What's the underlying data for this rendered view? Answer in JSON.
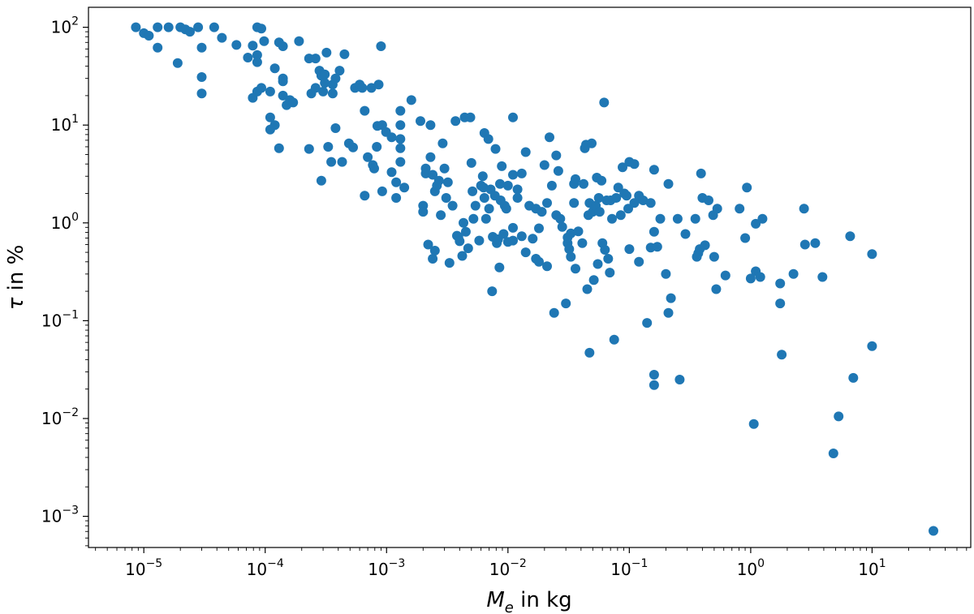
{
  "chart_data": {
    "type": "scatter",
    "xscale": "log",
    "yscale": "log",
    "xlim": [
      3.5e-06,
      65
    ],
    "ylim": [
      0.00048,
      160
    ],
    "grid": false,
    "legend": "none",
    "marker_color": "#1f77b4",
    "xlabel": {
      "symbol": "M",
      "subscript": "e",
      "rest": " in kg"
    },
    "ylabel": {
      "symbol": "τ",
      "rest": " in %"
    },
    "x_ticks": [
      {
        "value": 1e-05,
        "base": "10",
        "exp": "−5"
      },
      {
        "value": 0.0001,
        "base": "10",
        "exp": "−4"
      },
      {
        "value": 0.001,
        "base": "10",
        "exp": "−3"
      },
      {
        "value": 0.01,
        "base": "10",
        "exp": "−2"
      },
      {
        "value": 0.1,
        "base": "10",
        "exp": "−1"
      },
      {
        "value": 1,
        "base": "10",
        "exp": "0"
      },
      {
        "value": 10,
        "base": "10",
        "exp": "1"
      }
    ],
    "y_ticks": [
      {
        "value": 0.001,
        "base": "10",
        "exp": "−3"
      },
      {
        "value": 0.01,
        "base": "10",
        "exp": "−2"
      },
      {
        "value": 0.1,
        "base": "10",
        "exp": "−1"
      },
      {
        "value": 1,
        "base": "10",
        "exp": "0"
      },
      {
        "value": 10,
        "base": "10",
        "exp": "1"
      },
      {
        "value": 100,
        "base": "10",
        "exp": "2"
      }
    ],
    "points": [
      [
        8.6e-06,
        100
      ],
      [
        1e-05,
        87
      ],
      [
        1.1e-05,
        82
      ],
      [
        1.3e-05,
        100
      ],
      [
        1.6e-05,
        100
      ],
      [
        2e-05,
        100
      ],
      [
        2.2e-05,
        95
      ],
      [
        2.4e-05,
        90
      ],
      [
        2.8e-05,
        100
      ],
      [
        3.8e-05,
        100
      ],
      [
        4.4e-05,
        78
      ],
      [
        1.3e-05,
        62
      ],
      [
        1.9e-05,
        43
      ],
      [
        3e-05,
        62
      ],
      [
        3e-05,
        31
      ],
      [
        3e-05,
        21
      ],
      [
        5.8e-05,
        66
      ],
      [
        7.2e-05,
        49
      ],
      [
        7.9e-05,
        65
      ],
      [
        8.6e-05,
        100
      ],
      [
        9.3e-05,
        97
      ],
      [
        8.6e-05,
        52
      ],
      [
        8.6e-05,
        44
      ],
      [
        9.8e-05,
        72
      ],
      [
        7.9e-05,
        19
      ],
      [
        8.6e-05,
        22
      ],
      [
        0.00011,
        22
      ],
      [
        9.3e-05,
        24
      ],
      [
        0.00011,
        12
      ],
      [
        0.00011,
        9
      ],
      [
        0.00012,
        10
      ],
      [
        0.00013,
        5.8
      ],
      [
        0.00012,
        38
      ],
      [
        0.00013,
        70
      ],
      [
        0.00014,
        64
      ],
      [
        0.00014,
        30
      ],
      [
        0.00014,
        20
      ],
      [
        0.00014,
        28
      ],
      [
        0.00015,
        16
      ],
      [
        0.00016,
        18
      ],
      [
        0.00017,
        17
      ],
      [
        0.00019,
        72
      ],
      [
        0.00023,
        48
      ],
      [
        0.00023,
        5.7
      ],
      [
        0.00024,
        21
      ],
      [
        0.00026,
        24
      ],
      [
        0.00026,
        48
      ],
      [
        0.00028,
        36
      ],
      [
        0.00029,
        2.7
      ],
      [
        0.00029,
        32
      ],
      [
        0.0003,
        22
      ],
      [
        0.00031,
        33
      ],
      [
        0.00031,
        27
      ],
      [
        0.00032,
        55
      ],
      [
        0.00033,
        6.0
      ],
      [
        0.00035,
        4.2
      ],
      [
        0.00036,
        26
      ],
      [
        0.00036,
        21
      ],
      [
        0.00038,
        9.3
      ],
      [
        0.00038,
        30
      ],
      [
        0.00041,
        36
      ],
      [
        0.00043,
        4.2
      ],
      [
        0.00045,
        53
      ],
      [
        0.00049,
        6.5
      ],
      [
        0.00053,
        5.9
      ],
      [
        0.00055,
        24
      ],
      [
        0.0006,
        26
      ],
      [
        0.00063,
        24
      ],
      [
        0.00066,
        14
      ],
      [
        0.00066,
        1.9
      ],
      [
        0.0007,
        4.7
      ],
      [
        0.00075,
        24
      ],
      [
        0.00077,
        3.9
      ],
      [
        0.00079,
        3.6
      ],
      [
        0.00083,
        6.0
      ],
      [
        0.00084,
        9.8
      ],
      [
        0.00086,
        26
      ],
      [
        0.0009,
        64
      ],
      [
        0.00092,
        10
      ],
      [
        0.00092,
        2.1
      ],
      [
        0.00099,
        8.5
      ],
      [
        0.0011,
        3.3
      ],
      [
        0.0011,
        7.5
      ],
      [
        0.0012,
        2.6
      ],
      [
        0.0012,
        1.8
      ],
      [
        0.0013,
        14
      ],
      [
        0.0013,
        10
      ],
      [
        0.0013,
        4.2
      ],
      [
        0.0013,
        5.8
      ],
      [
        0.0013,
        7.2
      ],
      [
        0.0014,
        2.3
      ],
      [
        0.0016,
        18
      ],
      [
        0.0019,
        11
      ],
      [
        0.002,
        1.5
      ],
      [
        0.002,
        1.3
      ],
      [
        0.0021,
        3.6
      ],
      [
        0.0021,
        3.2
      ],
      [
        0.0022,
        0.6
      ],
      [
        0.0023,
        4.7
      ],
      [
        0.0023,
        10
      ],
      [
        0.0024,
        0.43
      ],
      [
        0.0024,
        3.1
      ],
      [
        0.0025,
        2.1
      ],
      [
        0.0025,
        0.52
      ],
      [
        0.0026,
        2.4
      ],
      [
        0.0027,
        2.7
      ],
      [
        0.0028,
        1.2
      ],
      [
        0.0029,
        6.5
      ],
      [
        0.003,
        3.6
      ],
      [
        0.0031,
        1.8
      ],
      [
        0.0032,
        2.6
      ],
      [
        0.0033,
        0.39
      ],
      [
        0.0035,
        1.5
      ],
      [
        0.0037,
        11
      ],
      [
        0.0038,
        0.74
      ],
      [
        0.0039,
        0.72
      ],
      [
        0.004,
        0.65
      ],
      [
        0.0042,
        0.46
      ],
      [
        0.0043,
        1.0
      ],
      [
        0.0044,
        12
      ],
      [
        0.0045,
        0.81
      ],
      [
        0.0047,
        0.55
      ],
      [
        0.0049,
        12
      ],
      [
        0.005,
        4.1
      ],
      [
        0.0051,
        2.1
      ],
      [
        0.0052,
        1.1
      ],
      [
        0.0054,
        1.5
      ],
      [
        0.0058,
        0.66
      ],
      [
        0.006,
        2.4
      ],
      [
        0.0062,
        3.0
      ],
      [
        0.0063,
        2.3
      ],
      [
        0.0064,
        1.8
      ],
      [
        0.0064,
        8.3
      ],
      [
        0.0066,
        1.1
      ],
      [
        0.0069,
        7.2
      ],
      [
        0.007,
        1.4
      ],
      [
        0.0072,
        2.2
      ],
      [
        0.0074,
        0.2
      ],
      [
        0.0075,
        0.72
      ],
      [
        0.0078,
        1.9
      ],
      [
        0.0079,
        5.7
      ],
      [
        0.0081,
        0.62
      ],
      [
        0.0083,
        0.68
      ],
      [
        0.0085,
        0.35
      ],
      [
        0.0086,
        2.5
      ],
      [
        0.0087,
        1.7
      ],
      [
        0.0089,
        3.8
      ],
      [
        0.0092,
        0.77
      ],
      [
        0.0094,
        1.5
      ],
      [
        0.0097,
        1.4
      ],
      [
        0.01,
        2.4
      ],
      [
        0.01,
        0.64
      ],
      [
        0.011,
        12
      ],
      [
        0.011,
        3.1
      ],
      [
        0.011,
        0.66
      ],
      [
        0.011,
        0.89
      ],
      [
        0.012,
        2.2
      ],
      [
        0.012,
        1.8
      ],
      [
        0.013,
        0.73
      ],
      [
        0.013,
        3.2
      ],
      [
        0.014,
        0.5
      ],
      [
        0.014,
        5.3
      ],
      [
        0.015,
        1.5
      ],
      [
        0.016,
        0.69
      ],
      [
        0.017,
        0.43
      ],
      [
        0.017,
        1.4
      ],
      [
        0.018,
        0.88
      ],
      [
        0.018,
        0.4
      ],
      [
        0.019,
        1.3
      ],
      [
        0.02,
        3.9
      ],
      [
        0.021,
        1.6
      ],
      [
        0.021,
        0.36
      ],
      [
        0.022,
        7.5
      ],
      [
        0.023,
        2.4
      ],
      [
        0.024,
        0.12
      ],
      [
        0.025,
        4.9
      ],
      [
        0.025,
        1.2
      ],
      [
        0.026,
        3.4
      ],
      [
        0.027,
        1.1
      ],
      [
        0.028,
        0.91
      ],
      [
        0.03,
        0.15
      ],
      [
        0.031,
        0.62
      ],
      [
        0.031,
        0.71
      ],
      [
        0.032,
        0.54
      ],
      [
        0.033,
        0.45
      ],
      [
        0.033,
        0.78
      ],
      [
        0.035,
        1.6
      ],
      [
        0.035,
        2.5
      ],
      [
        0.036,
        0.34
      ],
      [
        0.036,
        2.8
      ],
      [
        0.038,
        0.82
      ],
      [
        0.041,
        0.62
      ],
      [
        0.042,
        2.5
      ],
      [
        0.043,
        5.8
      ],
      [
        0.044,
        6.3
      ],
      [
        0.045,
        0.21
      ],
      [
        0.046,
        1.2
      ],
      [
        0.047,
        0.047
      ],
      [
        0.047,
        1.6
      ],
      [
        0.049,
        6.5
      ],
      [
        0.05,
        1.3
      ],
      [
        0.051,
        0.26
      ],
      [
        0.053,
        1.5
      ],
      [
        0.054,
        2.9
      ],
      [
        0.055,
        0.38
      ],
      [
        0.056,
        1.8
      ],
      [
        0.057,
        1.3
      ],
      [
        0.059,
        2.7
      ],
      [
        0.06,
        0.62
      ],
      [
        0.062,
        17
      ],
      [
        0.063,
        0.53
      ],
      [
        0.065,
        1.7
      ],
      [
        0.067,
        0.43
      ],
      [
        0.069,
        0.31
      ],
      [
        0.07,
        1.7
      ],
      [
        0.072,
        1.1
      ],
      [
        0.075,
        0.064
      ],
      [
        0.078,
        1.8
      ],
      [
        0.081,
        2.3
      ],
      [
        0.085,
        1.2
      ],
      [
        0.088,
        3.7
      ],
      [
        0.091,
        2.0
      ],
      [
        0.095,
        1.9
      ],
      [
        0.098,
        1.4
      ],
      [
        0.1,
        4.2
      ],
      [
        0.1,
        0.54
      ],
      [
        0.11,
        1.6
      ],
      [
        0.11,
        4.0
      ],
      [
        0.12,
        1.9
      ],
      [
        0.12,
        0.4
      ],
      [
        0.13,
        1.7
      ],
      [
        0.14,
        0.095
      ],
      [
        0.15,
        1.6
      ],
      [
        0.15,
        0.56
      ],
      [
        0.16,
        0.81
      ],
      [
        0.16,
        0.022
      ],
      [
        0.16,
        0.028
      ],
      [
        0.16,
        3.5
      ],
      [
        0.17,
        0.57
      ],
      [
        0.18,
        1.1
      ],
      [
        0.2,
        0.3
      ],
      [
        0.21,
        2.5
      ],
      [
        0.21,
        0.12
      ],
      [
        0.22,
        0.17
      ],
      [
        0.25,
        1.1
      ],
      [
        0.26,
        0.025
      ],
      [
        0.29,
        0.77
      ],
      [
        0.35,
        1.1
      ],
      [
        0.36,
        0.45
      ],
      [
        0.37,
        0.49
      ],
      [
        0.38,
        0.54
      ],
      [
        0.39,
        3.2
      ],
      [
        0.4,
        1.8
      ],
      [
        0.42,
        0.59
      ],
      [
        0.45,
        1.7
      ],
      [
        0.49,
        1.2
      ],
      [
        0.5,
        0.45
      ],
      [
        0.52,
        0.21
      ],
      [
        0.53,
        1.4
      ],
      [
        0.62,
        0.29
      ],
      [
        0.81,
        1.4
      ],
      [
        0.9,
        0.7
      ],
      [
        0.93,
        2.3
      ],
      [
        1.0,
        0.27
      ],
      [
        1.06,
        0.0088
      ],
      [
        1.1,
        0.32
      ],
      [
        1.1,
        0.98
      ],
      [
        1.2,
        0.28
      ],
      [
        1.25,
        1.1
      ],
      [
        1.75,
        0.24
      ],
      [
        1.75,
        0.15
      ],
      [
        1.8,
        0.045
      ],
      [
        2.25,
        0.3
      ],
      [
        2.75,
        1.4
      ],
      [
        2.8,
        0.6
      ],
      [
        3.4,
        0.62
      ],
      [
        3.9,
        0.28
      ],
      [
        4.8,
        0.0044
      ],
      [
        5.3,
        0.0105
      ],
      [
        6.6,
        0.73
      ],
      [
        7.0,
        0.026
      ],
      [
        10.0,
        0.48
      ],
      [
        10.0,
        0.055
      ],
      [
        32,
        0.00071
      ]
    ]
  }
}
